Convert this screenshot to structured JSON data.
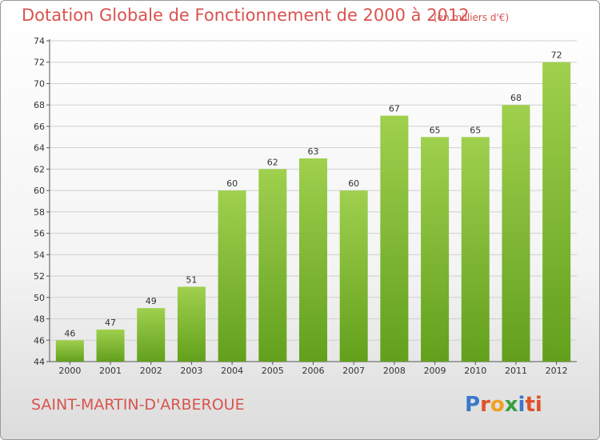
{
  "header": {
    "title": "Dotation Globale de Fonctionnement de 2000 à 2012",
    "subtitle": "(en milliers d'€)"
  },
  "footer": {
    "commune": "SAINT-MARTIN-D'ARBEROUE",
    "logo": "Proxiti"
  },
  "chart_data": {
    "type": "bar",
    "title": "Dotation Globale de Fonctionnement de 2000 à 2012",
    "subtitle": "(en milliers d'€)",
    "xlabel": "",
    "ylabel": "",
    "categories": [
      "2000",
      "2001",
      "2002",
      "2003",
      "2004",
      "2005",
      "2006",
      "2007",
      "2008",
      "2009",
      "2010",
      "2011",
      "2012"
    ],
    "values": [
      46,
      47,
      49,
      51,
      60,
      62,
      63,
      60,
      67,
      65,
      65,
      68,
      72
    ],
    "ylim": [
      44,
      74
    ],
    "yticks": [
      44,
      46,
      48,
      50,
      52,
      54,
      56,
      58,
      60,
      62,
      64,
      66,
      68,
      70,
      72,
      74
    ],
    "grid": true,
    "bar_color_top": "#9fd04e",
    "bar_color_bottom": "#62a01c",
    "grid_color": "#d0d0d0"
  }
}
